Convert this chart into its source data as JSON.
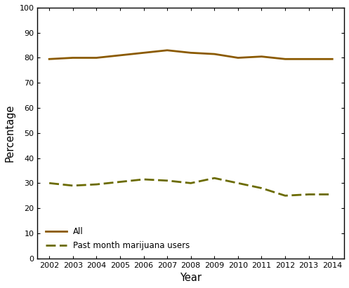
{
  "years": [
    2002,
    2003,
    2004,
    2005,
    2006,
    2007,
    2008,
    2009,
    2010,
    2011,
    2012,
    2013,
    2014
  ],
  "all_persons": [
    79.5,
    80.0,
    80.0,
    81.0,
    82.0,
    83.0,
    82.0,
    81.5,
    80.0,
    80.5,
    79.5,
    79.5,
    79.5
  ],
  "past_month_users": [
    30.0,
    29.0,
    29.5,
    30.5,
    31.5,
    31.0,
    30.0,
    32.0,
    30.0,
    28.0,
    25.0,
    25.5,
    25.5
  ],
  "all_color": "#8B5A00",
  "users_color": "#6B6B00",
  "xlabel": "Year",
  "ylabel": "Percentage",
  "ylim": [
    0,
    100
  ],
  "yticks": [
    0,
    10,
    20,
    30,
    40,
    50,
    60,
    70,
    80,
    90,
    100
  ],
  "legend_all": "All",
  "legend_users": "Past month marijuana users",
  "bg_color": "#ffffff",
  "line_width": 2.0,
  "fig_width": 4.97,
  "fig_height": 4.11,
  "dpi": 100
}
